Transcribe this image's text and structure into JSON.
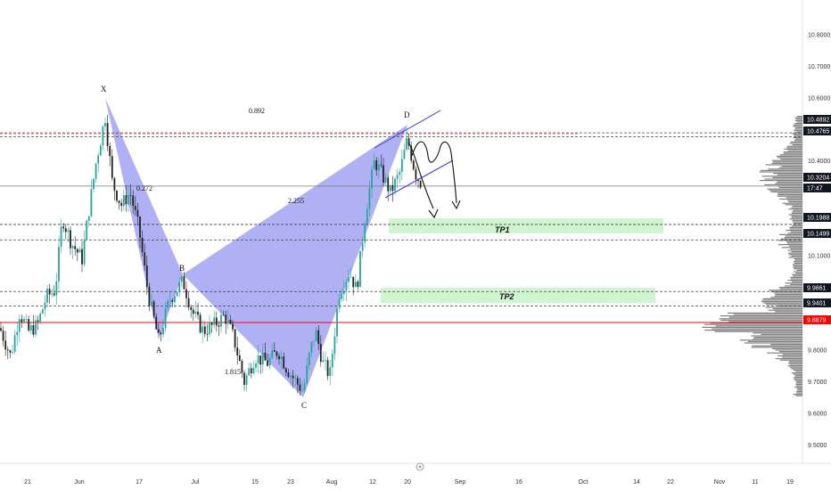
{
  "chart_data": {
    "type": "candlestick",
    "instrument_note": "",
    "y_axis": {
      "ticks": [
        "10.8000",
        "10.7000",
        "10.6000",
        "10.4000",
        "10.1000",
        "9.8000",
        "9.7000",
        "9.6000",
        "9.5000"
      ],
      "range": [
        9.44,
        10.9
      ]
    },
    "x_axis": {
      "ticks": [
        "21",
        "Jun",
        "17",
        "Jul",
        "15",
        "23",
        "Aug",
        "12",
        "20",
        "Sep",
        "16",
        "Oct",
        "14",
        "22",
        "Nov",
        "11",
        "19"
      ]
    },
    "price_tags": [
      {
        "value": "10.4892",
        "style": "dark"
      },
      {
        "value": "10.4765",
        "style": "dark"
      },
      {
        "value": "10.3204",
        "style": "dark"
      },
      {
        "value": "17:47",
        "style": "dark"
      },
      {
        "value": "10.1988",
        "style": "dark"
      },
      {
        "value": "10.1499",
        "style": "dark"
      },
      {
        "value": "9.9861",
        "style": "dark"
      },
      {
        "value": "9.9401",
        "style": "dark"
      },
      {
        "value": "9.8879",
        "style": "red"
      }
    ],
    "horizontal_levels": [
      10.4892,
      10.4765,
      10.3204,
      10.1988,
      10.1499,
      9.9861,
      9.9401,
      9.8879
    ],
    "pattern": {
      "points": [
        {
          "label": "X",
          "price": 10.56
        },
        {
          "label": "A",
          "price": 9.83
        },
        {
          "label": "B",
          "price": 10.03
        },
        {
          "label": "C",
          "price": 9.67
        },
        {
          "label": "D",
          "price": 10.48
        }
      ],
      "ratios": [
        "0.892",
        "0.272",
        "2.255",
        "1.815"
      ]
    },
    "targets": [
      {
        "label": "TP1",
        "from": 10.15,
        "to": 10.2
      },
      {
        "label": "TP2",
        "from": 9.94,
        "to": 9.98
      }
    ],
    "colors": {
      "pattern_fill": "#8f8ff0",
      "up_candle": "#26a69a",
      "down_candle": "#222222",
      "tp_zone": "#c8f2c8",
      "red_level": "#ff0000",
      "trend_channel": "#3a3ae0"
    }
  }
}
